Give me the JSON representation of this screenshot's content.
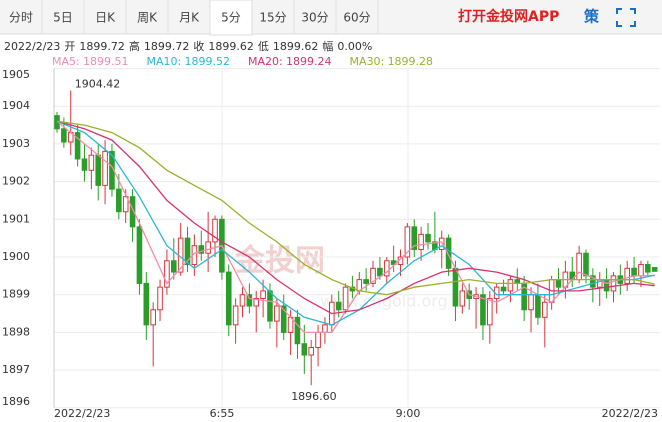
{
  "tabs": [
    "分时",
    "5日",
    "日K",
    "周K",
    "月K",
    "5分",
    "15分",
    "30分",
    "60分"
  ],
  "selected_tab": 5,
  "app_link": "打开金投网APP",
  "strategy": "策",
  "info": {
    "date": "2022/2/23",
    "items": [
      {
        "label": "开",
        "value": "1899.72"
      },
      {
        "label": "高",
        "value": "1899.72"
      },
      {
        "label": "收",
        "value": "1899.62"
      },
      {
        "label": "低",
        "value": "1899.62"
      },
      {
        "label": "幅",
        "value": "0.00%"
      }
    ]
  },
  "watermark": [
    "金投网",
    "www.cngold.org"
  ],
  "chart_data": {
    "type": "candlestick",
    "ylim": [
      1896,
      1905
    ],
    "yticks": [
      1896,
      1897,
      1898,
      1899,
      1900,
      1901,
      1902,
      1903,
      1904,
      1905
    ],
    "up_color": "#d9363e",
    "down_color": "#2a9d2a",
    "xlabels": [
      "2022/2/23",
      "6:55",
      "9:00",
      "2022/2/23"
    ],
    "annotations": [
      "1904.42",
      "1896.60"
    ],
    "ohlc": [
      [
        1903.75,
        1903.85,
        1903.3,
        1903.4
      ],
      [
        1903.4,
        1903.7,
        1902.9,
        1903.05
      ],
      [
        1903.05,
        1904.42,
        1902.7,
        1903.3
      ],
      [
        1903.3,
        1903.5,
        1902.4,
        1902.6
      ],
      [
        1902.6,
        1903.0,
        1902.0,
        1902.3
      ],
      [
        1902.3,
        1902.9,
        1901.8,
        1902.7
      ],
      [
        1902.7,
        1903.0,
        1901.5,
        1901.9
      ],
      [
        1901.9,
        1903.1,
        1901.4,
        1902.8
      ],
      [
        1902.8,
        1903.0,
        1901.6,
        1901.8
      ],
      [
        1901.8,
        1902.2,
        1901.0,
        1901.2
      ],
      [
        1901.2,
        1901.8,
        1900.9,
        1901.6
      ],
      [
        1901.6,
        1901.8,
        1900.4,
        1900.8
      ],
      [
        1900.8,
        1901.0,
        1899.0,
        1899.3
      ],
      [
        1899.3,
        1899.6,
        1897.8,
        1898.2
      ],
      [
        1898.2,
        1898.8,
        1897.1,
        1898.6
      ],
      [
        1898.6,
        1899.4,
        1898.3,
        1899.2
      ],
      [
        1899.2,
        1900.2,
        1899.0,
        1899.9
      ],
      [
        1899.9,
        1900.5,
        1899.4,
        1899.6
      ],
      [
        1899.6,
        1900.9,
        1899.5,
        1900.5
      ],
      [
        1900.5,
        1900.8,
        1899.6,
        1899.8
      ],
      [
        1899.8,
        1900.6,
        1899.5,
        1900.3
      ],
      [
        1900.3,
        1900.7,
        1899.9,
        1900.1
      ],
      [
        1900.1,
        1901.2,
        1899.6,
        1900.4
      ],
      [
        1900.4,
        1901.1,
        1900.0,
        1901.0
      ],
      [
        1901.0,
        1901.1,
        1899.4,
        1899.6
      ],
      [
        1899.6,
        1899.8,
        1897.9,
        1898.2
      ],
      [
        1898.2,
        1898.9,
        1897.7,
        1898.7
      ],
      [
        1898.7,
        1899.2,
        1898.4,
        1899.0
      ],
      [
        1899.0,
        1899.3,
        1898.5,
        1898.7
      ],
      [
        1898.7,
        1899.1,
        1898.0,
        1898.9
      ],
      [
        1898.9,
        1899.4,
        1898.4,
        1899.1
      ],
      [
        1899.1,
        1899.3,
        1898.1,
        1898.3
      ],
      [
        1898.3,
        1898.9,
        1897.6,
        1898.7
      ],
      [
        1898.7,
        1899.0,
        1897.8,
        1898.0
      ],
      [
        1898.0,
        1898.6,
        1897.4,
        1898.4
      ],
      [
        1898.4,
        1898.6,
        1897.3,
        1897.7
      ],
      [
        1897.7,
        1898.2,
        1896.9,
        1897.4
      ],
      [
        1897.4,
        1897.8,
        1896.6,
        1897.6
      ],
      [
        1897.6,
        1898.2,
        1897.1,
        1898.0
      ],
      [
        1898.0,
        1898.4,
        1897.7,
        1898.2
      ],
      [
        1898.2,
        1899.0,
        1898.0,
        1898.8
      ],
      [
        1898.8,
        1899.1,
        1898.4,
        1898.6
      ],
      [
        1898.6,
        1899.3,
        1898.5,
        1899.2
      ],
      [
        1899.2,
        1899.5,
        1898.9,
        1899.1
      ],
      [
        1899.1,
        1899.6,
        1899.0,
        1899.4
      ],
      [
        1899.4,
        1899.7,
        1899.1,
        1899.3
      ],
      [
        1899.3,
        1899.9,
        1899.2,
        1899.7
      ],
      [
        1899.7,
        1900.0,
        1899.4,
        1899.5
      ],
      [
        1899.5,
        1900.0,
        1899.3,
        1899.9
      ],
      [
        1899.9,
        1900.3,
        1899.6,
        1899.8
      ],
      [
        1899.8,
        1900.2,
        1899.5,
        1900.0
      ],
      [
        1900.0,
        1900.9,
        1899.8,
        1900.8
      ],
      [
        1900.8,
        1901.0,
        1900.0,
        1900.2
      ],
      [
        1900.2,
        1900.8,
        1899.9,
        1900.6
      ],
      [
        1900.6,
        1900.9,
        1900.2,
        1900.4
      ],
      [
        1900.4,
        1901.2,
        1900.1,
        1900.2
      ],
      [
        1900.2,
        1900.7,
        1899.7,
        1900.5
      ],
      [
        1900.5,
        1900.6,
        1899.5,
        1899.7
      ],
      [
        1899.7,
        1899.9,
        1898.3,
        1898.7
      ],
      [
        1898.7,
        1899.3,
        1898.5,
        1899.1
      ],
      [
        1899.1,
        1899.3,
        1898.6,
        1898.9
      ],
      [
        1898.9,
        1899.2,
        1898.1,
        1899.0
      ],
      [
        1899.0,
        1899.2,
        1897.8,
        1898.2
      ],
      [
        1898.2,
        1899.1,
        1897.7,
        1898.9
      ],
      [
        1898.9,
        1899.3,
        1898.5,
        1899.2
      ],
      [
        1899.2,
        1899.4,
        1899.0,
        1899.1
      ],
      [
        1899.1,
        1899.5,
        1898.8,
        1899.4
      ],
      [
        1899.4,
        1899.7,
        1899.1,
        1899.3
      ],
      [
        1899.3,
        1899.5,
        1898.3,
        1898.6
      ],
      [
        1898.6,
        1899.2,
        1898.0,
        1899.0
      ],
      [
        1899.0,
        1899.3,
        1898.2,
        1898.4
      ],
      [
        1898.4,
        1899.0,
        1897.6,
        1898.8
      ],
      [
        1898.8,
        1899.5,
        1898.6,
        1899.4
      ],
      [
        1899.4,
        1899.7,
        1899.0,
        1899.2
      ],
      [
        1899.2,
        1899.9,
        1898.9,
        1899.6
      ],
      [
        1899.6,
        1900.0,
        1899.2,
        1899.4
      ],
      [
        1899.4,
        1900.3,
        1899.3,
        1900.1
      ],
      [
        1900.1,
        1900.2,
        1899.3,
        1899.5
      ],
      [
        1899.5,
        1899.7,
        1898.8,
        1899.2
      ],
      [
        1899.2,
        1899.6,
        1898.7,
        1899.4
      ],
      [
        1899.4,
        1899.7,
        1898.9,
        1899.1
      ],
      [
        1899.1,
        1899.6,
        1898.8,
        1899.5
      ],
      [
        1899.5,
        1899.8,
        1899.0,
        1899.3
      ],
      [
        1899.3,
        1899.9,
        1899.1,
        1899.7
      ],
      [
        1899.7,
        1900.0,
        1899.3,
        1899.5
      ],
      [
        1899.5,
        1899.9,
        1899.2,
        1899.8
      ],
      [
        1899.8,
        1899.9,
        1899.5,
        1899.6
      ],
      [
        1899.72,
        1899.72,
        1899.62,
        1899.62
      ]
    ],
    "ma_x": [
      0,
      4,
      8,
      12,
      16,
      20,
      24,
      28,
      32,
      36,
      40,
      44,
      48,
      52,
      56,
      60,
      64,
      68,
      72,
      76,
      80,
      84,
      87
    ],
    "series": [
      {
        "name": "MA5",
        "value_label": "1899.51",
        "color": "#f08cab",
        "values": [
          1903.6,
          1903.0,
          1902.4,
          1900.9,
          1899.3,
          1900.1,
          1900.3,
          1898.9,
          1898.8,
          1898.0,
          1898.0,
          1899.1,
          1899.6,
          1900.3,
          1900.4,
          1899.0,
          1898.8,
          1899.2,
          1898.8,
          1899.6,
          1899.3,
          1899.5,
          1899.51
        ]
      },
      {
        "name": "MA10",
        "value_label": "1899.52",
        "color": "#2bb7d6",
        "values": [
          1903.6,
          1903.3,
          1902.7,
          1901.6,
          1900.3,
          1899.7,
          1900.2,
          1899.6,
          1898.9,
          1898.4,
          1898.2,
          1898.6,
          1899.3,
          1899.9,
          1900.3,
          1899.8,
          1899.0,
          1899.0,
          1899.0,
          1899.2,
          1899.4,
          1899.4,
          1899.52
        ]
      },
      {
        "name": "MA20",
        "value_label": "1899.24",
        "color": "#d6336f",
        "values": [
          1903.6,
          1903.4,
          1903.1,
          1902.4,
          1901.5,
          1900.9,
          1900.4,
          1900.0,
          1899.4,
          1898.9,
          1898.5,
          1898.6,
          1898.9,
          1899.3,
          1899.6,
          1899.7,
          1899.6,
          1899.4,
          1899.1,
          1899.1,
          1899.2,
          1899.3,
          1899.24
        ]
      },
      {
        "name": "MA30",
        "value_label": "1899.28",
        "color": "#9cb02a",
        "values": [
          1903.6,
          1903.5,
          1903.3,
          1902.9,
          1902.3,
          1901.9,
          1901.5,
          1900.9,
          1900.4,
          1899.8,
          1899.4,
          1899.1,
          1899.0,
          1899.2,
          1899.3,
          1899.4,
          1899.3,
          1899.3,
          1899.4,
          1899.4,
          1899.4,
          1899.4,
          1899.28
        ]
      }
    ]
  }
}
